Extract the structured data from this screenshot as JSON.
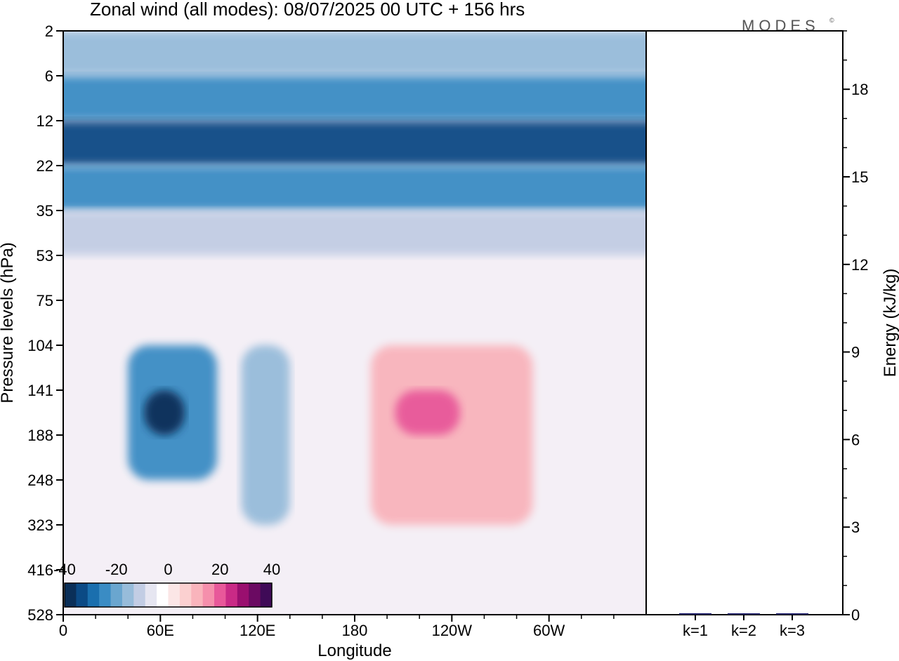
{
  "header": {
    "title": "Zonal wind (all modes):  08/07/2025  00 UTC  + 156 hrs",
    "brand": "MODES",
    "brand_mark": "©"
  },
  "chart_data": [
    {
      "type": "heatmap",
      "title": "Zonal wind (all modes):  08/07/2025  00 UTC  + 156 hrs",
      "xlabel": "Longitude",
      "ylabel": "Pressure levels (hPa)",
      "x_ticks": [
        "0",
        "60E",
        "120E",
        "180",
        "120W",
        "60W"
      ],
      "x_tick_values": [
        0,
        60,
        120,
        180,
        240,
        300
      ],
      "xlim": [
        0,
        360
      ],
      "y_ticks": [
        "2",
        "6",
        "12",
        "22",
        "35",
        "53",
        "75",
        "104",
        "141",
        "188",
        "248",
        "323",
        "416",
        "528"
      ],
      "y_scale": "level index (top = 2 hPa, bottom = 528 hPa)",
      "colorbar": {
        "tick_labels": [
          "-40",
          "-20",
          "0",
          "20",
          "40"
        ],
        "tick_values": [
          -40,
          -20,
          0,
          20,
          40
        ],
        "step": 5,
        "colors": [
          "#0a2f58",
          "#0b4a85",
          "#1a6fae",
          "#3a8cc4",
          "#6aa6cf",
          "#97bcda",
          "#c2cde4",
          "#e6e6f1",
          "#ffffff",
          "#fbe6e6",
          "#fbd0d0",
          "#f9b4bc",
          "#f58fac",
          "#e8589a",
          "#c92a86",
          "#9a0f6f",
          "#6b0a62",
          "#3f0a57"
        ]
      },
      "regions": [
        {
          "level_from": 2,
          "level_to": 6,
          "lon_from": 0,
          "lon_to": 360,
          "value": -15
        },
        {
          "level_from": 6,
          "level_to": 12,
          "lon_from": 0,
          "lon_to": 360,
          "value": -25
        },
        {
          "level_from": 12,
          "level_to": 22,
          "lon_from": 0,
          "lon_to": 360,
          "value": -35
        },
        {
          "level_from": 22,
          "level_to": 35,
          "lon_from": 0,
          "lon_to": 360,
          "value": -25
        },
        {
          "level_from": 35,
          "level_to": 53,
          "lon_from": 0,
          "lon_to": 360,
          "value": -10
        },
        {
          "level_from": 104,
          "level_to": 248,
          "lon_from": 40,
          "lon_to": 95,
          "value": -25
        },
        {
          "level_from": 141,
          "level_to": 188,
          "lon_from": 50,
          "lon_to": 75,
          "value": -38
        },
        {
          "level_from": 104,
          "level_to": 323,
          "lon_from": 110,
          "lon_to": 140,
          "value": -15
        },
        {
          "level_from": 104,
          "level_to": 323,
          "lon_from": 190,
          "lon_to": 290,
          "value": 10
        },
        {
          "level_from": 141,
          "level_to": 188,
          "lon_from": 205,
          "lon_to": 245,
          "value": 20
        }
      ]
    },
    {
      "type": "bar",
      "ylabel": "Energy (kJ/kg)",
      "categories": [
        "k=1",
        "k=2",
        "k=3"
      ],
      "values": [
        0.05,
        0.01,
        0.01
      ],
      "yticks": [
        0,
        3,
        6,
        9,
        12,
        15,
        18
      ],
      "ylim": [
        0,
        20
      ],
      "bar_color": "#1a1a66"
    }
  ]
}
